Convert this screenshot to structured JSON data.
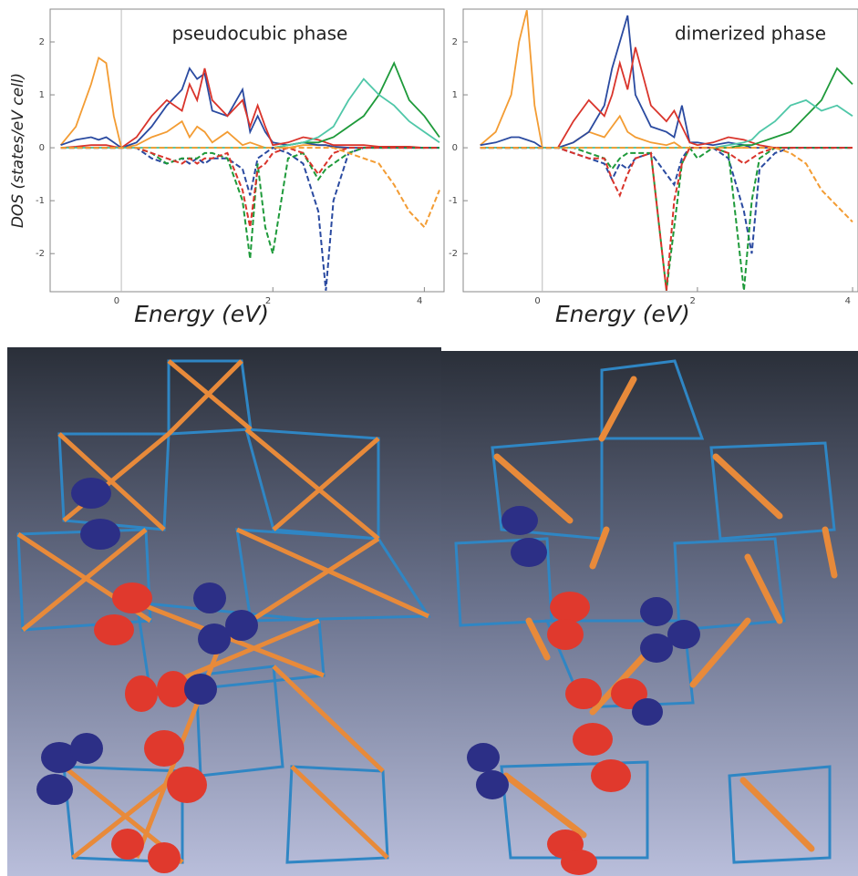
{
  "chart_data": [
    {
      "type": "line",
      "title": "pseudocubic phase",
      "x_label": "Energy (eV)",
      "y_label": "DOS (states/eV cell)",
      "x": [
        -0.8,
        -0.6,
        -0.4,
        -0.3,
        -0.2,
        -0.1,
        0,
        0.2,
        0.4,
        0.6,
        0.8,
        0.9,
        1.0,
        1.1,
        1.2,
        1.4,
        1.6,
        1.7,
        1.8,
        1.9,
        2.0,
        2.2,
        2.4,
        2.6,
        2.7,
        2.8,
        3.0,
        3.2,
        3.4,
        3.6,
        3.8,
        4.0,
        4.2
      ],
      "xlim": [
        -0.94,
        4.26
      ],
      "ylim": [
        -2.72,
        2.62
      ],
      "xticks": [
        0,
        2,
        4
      ],
      "yticks": [
        -2,
        -1,
        0,
        1,
        2
      ],
      "series": [
        {
          "color": "#f39c33",
          "dash": false,
          "values": [
            0.05,
            0.4,
            1.2,
            1.7,
            1.6,
            0.6,
            0,
            0.05,
            0.2,
            0.3,
            0.5,
            0.2,
            0.4,
            0.3,
            0.1,
            0.3,
            0.05,
            0.1,
            0.05,
            0,
            0,
            0,
            0.05,
            0.05,
            0.05,
            0,
            0,
            0,
            0,
            0,
            0,
            0,
            0
          ]
        },
        {
          "color": "#2a4aa0",
          "dash": false,
          "values": [
            0.05,
            0.15,
            0.2,
            0.15,
            0.2,
            0.1,
            0,
            0.1,
            0.4,
            0.8,
            1.1,
            1.5,
            1.3,
            1.4,
            0.7,
            0.6,
            1.1,
            0.3,
            0.6,
            0.3,
            0.1,
            0.05,
            0.1,
            0.05,
            0.05,
            0.02,
            0,
            0,
            0,
            0,
            0,
            0,
            0
          ]
        },
        {
          "color": "#d9342b",
          "dash": false,
          "values": [
            0,
            0.02,
            0.05,
            0.05,
            0.05,
            0.02,
            0,
            0.2,
            0.6,
            0.9,
            0.7,
            1.2,
            0.9,
            1.5,
            0.9,
            0.6,
            0.9,
            0.4,
            0.8,
            0.4,
            0.05,
            0.1,
            0.2,
            0.15,
            0.1,
            0.05,
            0.05,
            0.05,
            0.02,
            0.02,
            0.02,
            0,
            0
          ]
        },
        {
          "color": "#1e9a3a",
          "dash": false,
          "values": [
            0,
            0,
            0,
            0,
            0,
            0,
            0,
            0,
            0,
            0,
            0,
            0,
            0,
            0,
            0,
            0,
            0,
            0,
            0,
            0,
            0,
            0.05,
            0.1,
            0.1,
            0.15,
            0.2,
            0.4,
            0.6,
            1.0,
            1.6,
            0.9,
            0.6,
            0.2
          ]
        },
        {
          "color": "#4fc7a8",
          "dash": false,
          "values": [
            0,
            0,
            0,
            0,
            0,
            0,
            0,
            0,
            0,
            0,
            0,
            0,
            0,
            0,
            0,
            0,
            0,
            0,
            0,
            0,
            0,
            0.05,
            0.1,
            0.2,
            0.3,
            0.4,
            0.9,
            1.3,
            1.0,
            0.8,
            0.5,
            0.3,
            0.1
          ]
        },
        {
          "color": "#2a4aa0",
          "dash": true,
          "values": [
            0,
            0,
            0,
            0,
            0,
            0,
            0,
            0,
            -0.2,
            -0.3,
            -0.2,
            -0.3,
            -0.2,
            -0.3,
            -0.2,
            -0.2,
            -0.4,
            -0.9,
            -0.2,
            -0.1,
            0,
            -0.1,
            -0.3,
            -1.2,
            -2.7,
            -1.0,
            -0.1,
            0,
            0,
            0,
            0,
            0,
            0
          ]
        },
        {
          "color": "#1e9a3a",
          "dash": true,
          "values": [
            0,
            0,
            0,
            0,
            0,
            0,
            0,
            0,
            -0.1,
            -0.3,
            -0.2,
            -0.2,
            -0.2,
            -0.1,
            -0.1,
            -0.2,
            -1.0,
            -2.1,
            -0.3,
            -1.5,
            -2.0,
            -0.2,
            -0.1,
            -0.6,
            -0.4,
            -0.3,
            -0.1,
            0,
            0,
            0,
            0,
            0,
            0
          ]
        },
        {
          "color": "#d9342b",
          "dash": true,
          "values": [
            0,
            0,
            0,
            0,
            0,
            0,
            0,
            0,
            -0.1,
            -0.2,
            -0.3,
            -0.2,
            -0.3,
            -0.2,
            -0.2,
            -0.1,
            -0.8,
            -1.5,
            -0.4,
            -0.3,
            -0.1,
            0,
            -0.1,
            -0.5,
            -0.3,
            -0.1,
            0,
            0,
            0,
            0,
            0,
            0,
            0
          ]
        },
        {
          "color": "#f39c33",
          "dash": true,
          "values": [
            0,
            0,
            0,
            0,
            0,
            0,
            0,
            0,
            0,
            0,
            0,
            0,
            0,
            0,
            0,
            0,
            0,
            0,
            0,
            0,
            0,
            0,
            0,
            0,
            0,
            0,
            -0.1,
            -0.2,
            -0.3,
            -0.7,
            -1.2,
            -1.5,
            -0.8
          ]
        }
      ]
    },
    {
      "type": "line",
      "title": "dimerized phase",
      "x_label": "Energy (eV)",
      "x": [
        -0.8,
        -0.6,
        -0.4,
        -0.3,
        -0.2,
        -0.1,
        0,
        0.2,
        0.4,
        0.6,
        0.8,
        0.9,
        1.0,
        1.1,
        1.2,
        1.4,
        1.6,
        1.7,
        1.8,
        1.9,
        2.0,
        2.2,
        2.4,
        2.6,
        2.7,
        2.8,
        3.0,
        3.2,
        3.4,
        3.6,
        3.8,
        4.0
      ],
      "xlim": [
        -1.02,
        4.07
      ],
      "ylim": [
        -2.72,
        2.62
      ],
      "xticks": [
        0,
        2,
        4
      ],
      "yticks": [
        -2,
        -1,
        0,
        1,
        2
      ],
      "series": [
        {
          "color": "#f39c33",
          "dash": false,
          "values": [
            0.05,
            0.3,
            1.0,
            2.0,
            2.6,
            0.8,
            0,
            0,
            0.1,
            0.3,
            0.2,
            0.4,
            0.6,
            0.3,
            0.2,
            0.1,
            0.05,
            0.1,
            0,
            0,
            0,
            0,
            0,
            0,
            0,
            0,
            0,
            0,
            0,
            0,
            0,
            0
          ]
        },
        {
          "color": "#2a4aa0",
          "dash": false,
          "values": [
            0.05,
            0.1,
            0.2,
            0.2,
            0.15,
            0.1,
            0,
            0,
            0.1,
            0.3,
            0.8,
            1.5,
            2.0,
            2.5,
            1.0,
            0.4,
            0.3,
            0.2,
            0.8,
            0.1,
            0.1,
            0.05,
            0.1,
            0.05,
            0,
            0,
            0,
            0,
            0,
            0,
            0,
            0
          ]
        },
        {
          "color": "#d9342b",
          "dash": false,
          "values": [
            0,
            0,
            0,
            0,
            0,
            0,
            0,
            0,
            0.5,
            0.9,
            0.6,
            1.0,
            1.6,
            1.1,
            1.9,
            0.8,
            0.5,
            0.7,
            0.4,
            0.1,
            0.05,
            0.1,
            0.2,
            0.15,
            0.1,
            0.05,
            0,
            0,
            0,
            0,
            0,
            0
          ]
        },
        {
          "color": "#1e9a3a",
          "dash": false,
          "values": [
            0,
            0,
            0,
            0,
            0,
            0,
            0,
            0,
            0,
            0,
            0,
            0,
            0,
            0,
            0,
            0,
            0,
            0,
            0,
            0,
            0,
            0,
            0,
            0.05,
            0.05,
            0.1,
            0.2,
            0.3,
            0.6,
            0.9,
            1.5,
            1.2
          ]
        },
        {
          "color": "#4fc7a8",
          "dash": false,
          "values": [
            0,
            0,
            0,
            0,
            0,
            0,
            0,
            0,
            0,
            0,
            0,
            0,
            0,
            0,
            0,
            0,
            0,
            0,
            0,
            0,
            0,
            0,
            0.05,
            0.1,
            0.15,
            0.3,
            0.5,
            0.8,
            0.9,
            0.7,
            0.8,
            0.6
          ]
        },
        {
          "color": "#2a4aa0",
          "dash": true,
          "values": [
            0,
            0,
            0,
            0,
            0,
            0,
            0,
            0,
            -0.1,
            -0.2,
            -0.3,
            -0.6,
            -0.3,
            -0.4,
            -0.2,
            -0.1,
            -0.5,
            -0.7,
            -0.2,
            0,
            0,
            0,
            -0.2,
            -1.2,
            -2.0,
            -0.4,
            -0.1,
            0,
            0,
            0,
            0,
            0
          ]
        },
        {
          "color": "#1e9a3a",
          "dash": true,
          "values": [
            0,
            0,
            0,
            0,
            0,
            0,
            0,
            0,
            0,
            -0.1,
            -0.2,
            -0.4,
            -0.2,
            -0.1,
            -0.1,
            -0.1,
            -2.7,
            -1.5,
            -0.3,
            0,
            -0.2,
            0,
            -0.1,
            -2.7,
            -1.0,
            -0.2,
            0,
            0,
            0,
            0,
            0,
            0
          ]
        },
        {
          "color": "#d9342b",
          "dash": true,
          "values": [
            0,
            0,
            0,
            0,
            0,
            0,
            0,
            0,
            -0.1,
            -0.2,
            -0.2,
            -0.6,
            -0.9,
            -0.5,
            -0.2,
            -0.1,
            -2.7,
            -1.0,
            -0.3,
            0,
            0,
            0,
            -0.1,
            -0.3,
            -0.2,
            -0.1,
            0,
            0,
            0,
            0,
            0,
            0
          ]
        },
        {
          "color": "#f39c33",
          "dash": true,
          "values": [
            0,
            0,
            0,
            0,
            0,
            0,
            0,
            0,
            0,
            0,
            0,
            0,
            0,
            0,
            0,
            0,
            0,
            0,
            0,
            0,
            0,
            0,
            0,
            0,
            0,
            0,
            0,
            -0.1,
            -0.3,
            -0.8,
            -1.1,
            -1.4
          ]
        }
      ]
    }
  ]
}
